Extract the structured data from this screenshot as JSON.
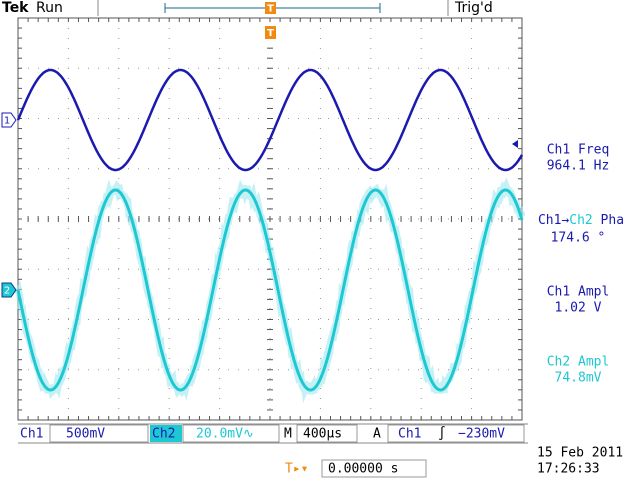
{
  "header": {
    "brand": "Tek",
    "status": "Run",
    "trigger_state": "Trig'd",
    "trigger_marker": "T"
  },
  "channel_markers": [
    "1",
    "2"
  ],
  "measurements": [
    {
      "label": "Ch1 Freq",
      "value": "964.1 Hz"
    },
    {
      "label_parts": [
        "Ch1",
        "→",
        "Ch2",
        " Pha"
      ],
      "value": "174.6 °"
    },
    {
      "label": "Ch1 Ampl",
      "value": "1.02 V"
    },
    {
      "label": "Ch2 Ampl",
      "value": "74.8mV"
    }
  ],
  "status_bar": {
    "ch1": "Ch1",
    "ch1_scale": "500mV",
    "ch2": "Ch2",
    "ch2_scale": "20.0mV∿",
    "timebase_label": "M",
    "timebase": "400µs",
    "trigger_label": "A",
    "trigger_source": "Ch1",
    "trigger_slope": "∫",
    "trigger_level": "−230mV"
  },
  "footer": {
    "trigger_icon": "T▸▾",
    "horizontal_position": "0.00000 s",
    "date": "15 Feb  2011",
    "time": "17:26:33"
  }
}
